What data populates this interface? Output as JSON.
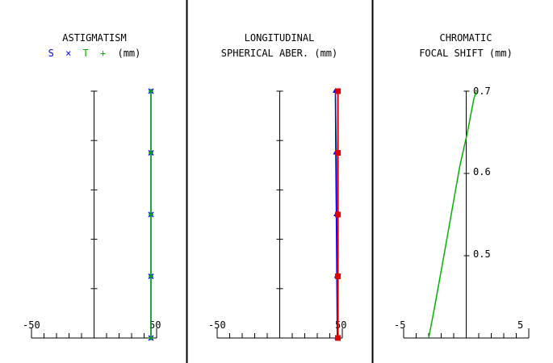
{
  "chart_data": [
    {
      "type": "line",
      "title_lines": [
        "ASTIGMATISM"
      ],
      "legend": {
        "label_s": "S",
        "mark_s": "×",
        "label_t": "T",
        "mark_t": "+",
        "units": "(mm)",
        "color_s": "#0000ff",
        "color_t": "#00b400"
      },
      "xlim": [
        -50,
        50
      ],
      "x_tick_labels": [
        "-50",
        "50"
      ],
      "y_ticks": 5,
      "series": [
        {
          "name": "S",
          "color": "#0000ff",
          "marker": "x",
          "x": [
            45.5,
            45.5,
            45.5,
            45.5,
            45.5
          ],
          "y": [
            0,
            0.25,
            0.5,
            0.75,
            1.0
          ]
        },
        {
          "name": "T",
          "color": "#00b400",
          "marker": "+",
          "x": [
            45.5,
            45.5,
            45.5,
            45.5,
            45.5
          ],
          "y": [
            0,
            0.25,
            0.5,
            0.75,
            1.0
          ]
        }
      ]
    },
    {
      "type": "line",
      "title_lines": [
        "LONGITUDINAL",
        "SPHERICAL ABER. (mm)"
      ],
      "xlim": [
        -50,
        50
      ],
      "x_tick_labels": [
        "-50",
        "50"
      ],
      "y_ticks": 5,
      "series": [
        {
          "color": "#00b400",
          "marker": "",
          "x": [
            46.5,
            46.3,
            46.0,
            45.2,
            44.5
          ],
          "y": [
            0,
            0.25,
            0.5,
            0.75,
            0.97
          ]
        },
        {
          "color": "#0000ff",
          "marker": "^",
          "x": [
            46.0,
            45.6,
            45.2,
            44.8,
            44.5
          ],
          "y": [
            0,
            0.25,
            0.5,
            0.75,
            1.0
          ]
        },
        {
          "color": "#e00000",
          "marker": "s",
          "x": [
            46.5,
            46.5,
            46.5,
            46.5,
            46.5
          ],
          "y": [
            0,
            0.25,
            0.5,
            0.75,
            1.0
          ]
        }
      ]
    },
    {
      "type": "line",
      "title_lines": [
        "CHROMATIC",
        "FOCAL SHIFT (mm)"
      ],
      "xlim": [
        -5,
        5
      ],
      "x_tick_labels": [
        "-5",
        "5"
      ],
      "ylim": [
        0.4,
        0.7
      ],
      "y_tick_labels": [
        "0.7",
        "0.6",
        "0.5"
      ],
      "y_tick_values": [
        0.7,
        0.6,
        0.5
      ],
      "series": [
        {
          "color": "#00b400",
          "marker": "",
          "x": [
            -3.0,
            -2.5,
            -1.9,
            -1.2,
            -0.5,
            0.1,
            0.6,
            0.8
          ],
          "y": [
            0.4,
            0.44,
            0.49,
            0.55,
            0.61,
            0.65,
            0.69,
            0.7
          ]
        }
      ]
    }
  ]
}
